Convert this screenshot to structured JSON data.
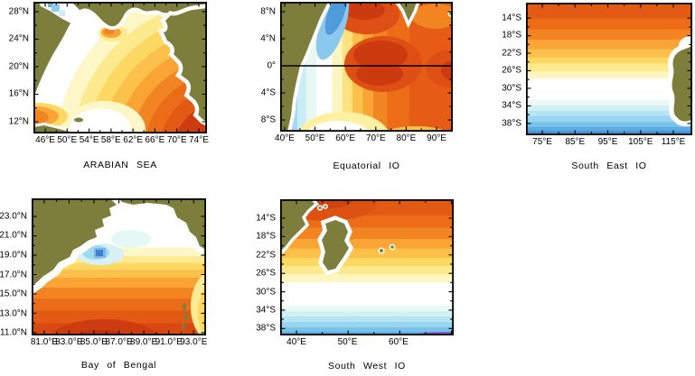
{
  "figure": {
    "background": "#ffffff"
  },
  "colors": {
    "land": "#7e7e3c",
    "coast_halo": "#ffffff",
    "frame": "#000000",
    "equator_line": "#000000",
    "scale_cold_to_hot": [
      "#8b52c6",
      "#3f7fd0",
      "#5aabe2",
      "#78c2ea",
      "#97d5f0",
      "#b5e5f3",
      "#d2f1f5",
      "#eaf9f5",
      "#ffffff",
      "#fdf6c0",
      "#fdea8e",
      "#fdd863",
      "#fcc14a",
      "#f9a434",
      "#f28422",
      "#ec6c18",
      "#e25a14",
      "#d84810",
      "#cc3c10"
    ]
  },
  "panels": {
    "arabian_sea": {
      "title": "ARABIAN SEA",
      "x_ticks": [
        "46°E",
        "50°E",
        "54°E",
        "58°E",
        "62°E",
        "66°E",
        "70°E",
        "74°E"
      ],
      "y_ticks": [
        "28°N",
        "24°N",
        "20°N",
        "16°N",
        "12°N"
      ]
    },
    "equatorial_io": {
      "title": "Equatorial IO",
      "x_ticks": [
        "40°E",
        "50°E",
        "60°E",
        "70°E",
        "80°E",
        "90°E"
      ],
      "y_ticks": [
        "8°N",
        "4°N",
        "0°",
        "4°S",
        "8°S"
      ]
    },
    "south_east_io": {
      "title": "South East IO",
      "x_ticks": [
        "75°E",
        "85°E",
        "95°E",
        "105°E",
        "115°E"
      ],
      "y_ticks": [
        "14°S",
        "18°S",
        "22°S",
        "26°S",
        "30°S",
        "34°S",
        "38°S"
      ]
    },
    "bay_of_bengal": {
      "title": "Bay of Bengal",
      "x_ticks": [
        "81.0°E",
        "83.0°E",
        "85.0°E",
        "87.0°E",
        "89.0°E",
        "91.0°E",
        "93.0°E"
      ],
      "y_ticks": [
        "23.0°N",
        "21.0°N",
        "19.0°N",
        "17.0°N",
        "15.0°N",
        "13.0°N",
        "11.0°N"
      ]
    },
    "south_west_io": {
      "title": "South West IO",
      "x_ticks": [
        "40°E",
        "50°E",
        "60°E"
      ],
      "y_ticks": [
        "14°S",
        "18°S",
        "22°S",
        "26°S",
        "30°S",
        "34°S",
        "38°S"
      ]
    }
  }
}
